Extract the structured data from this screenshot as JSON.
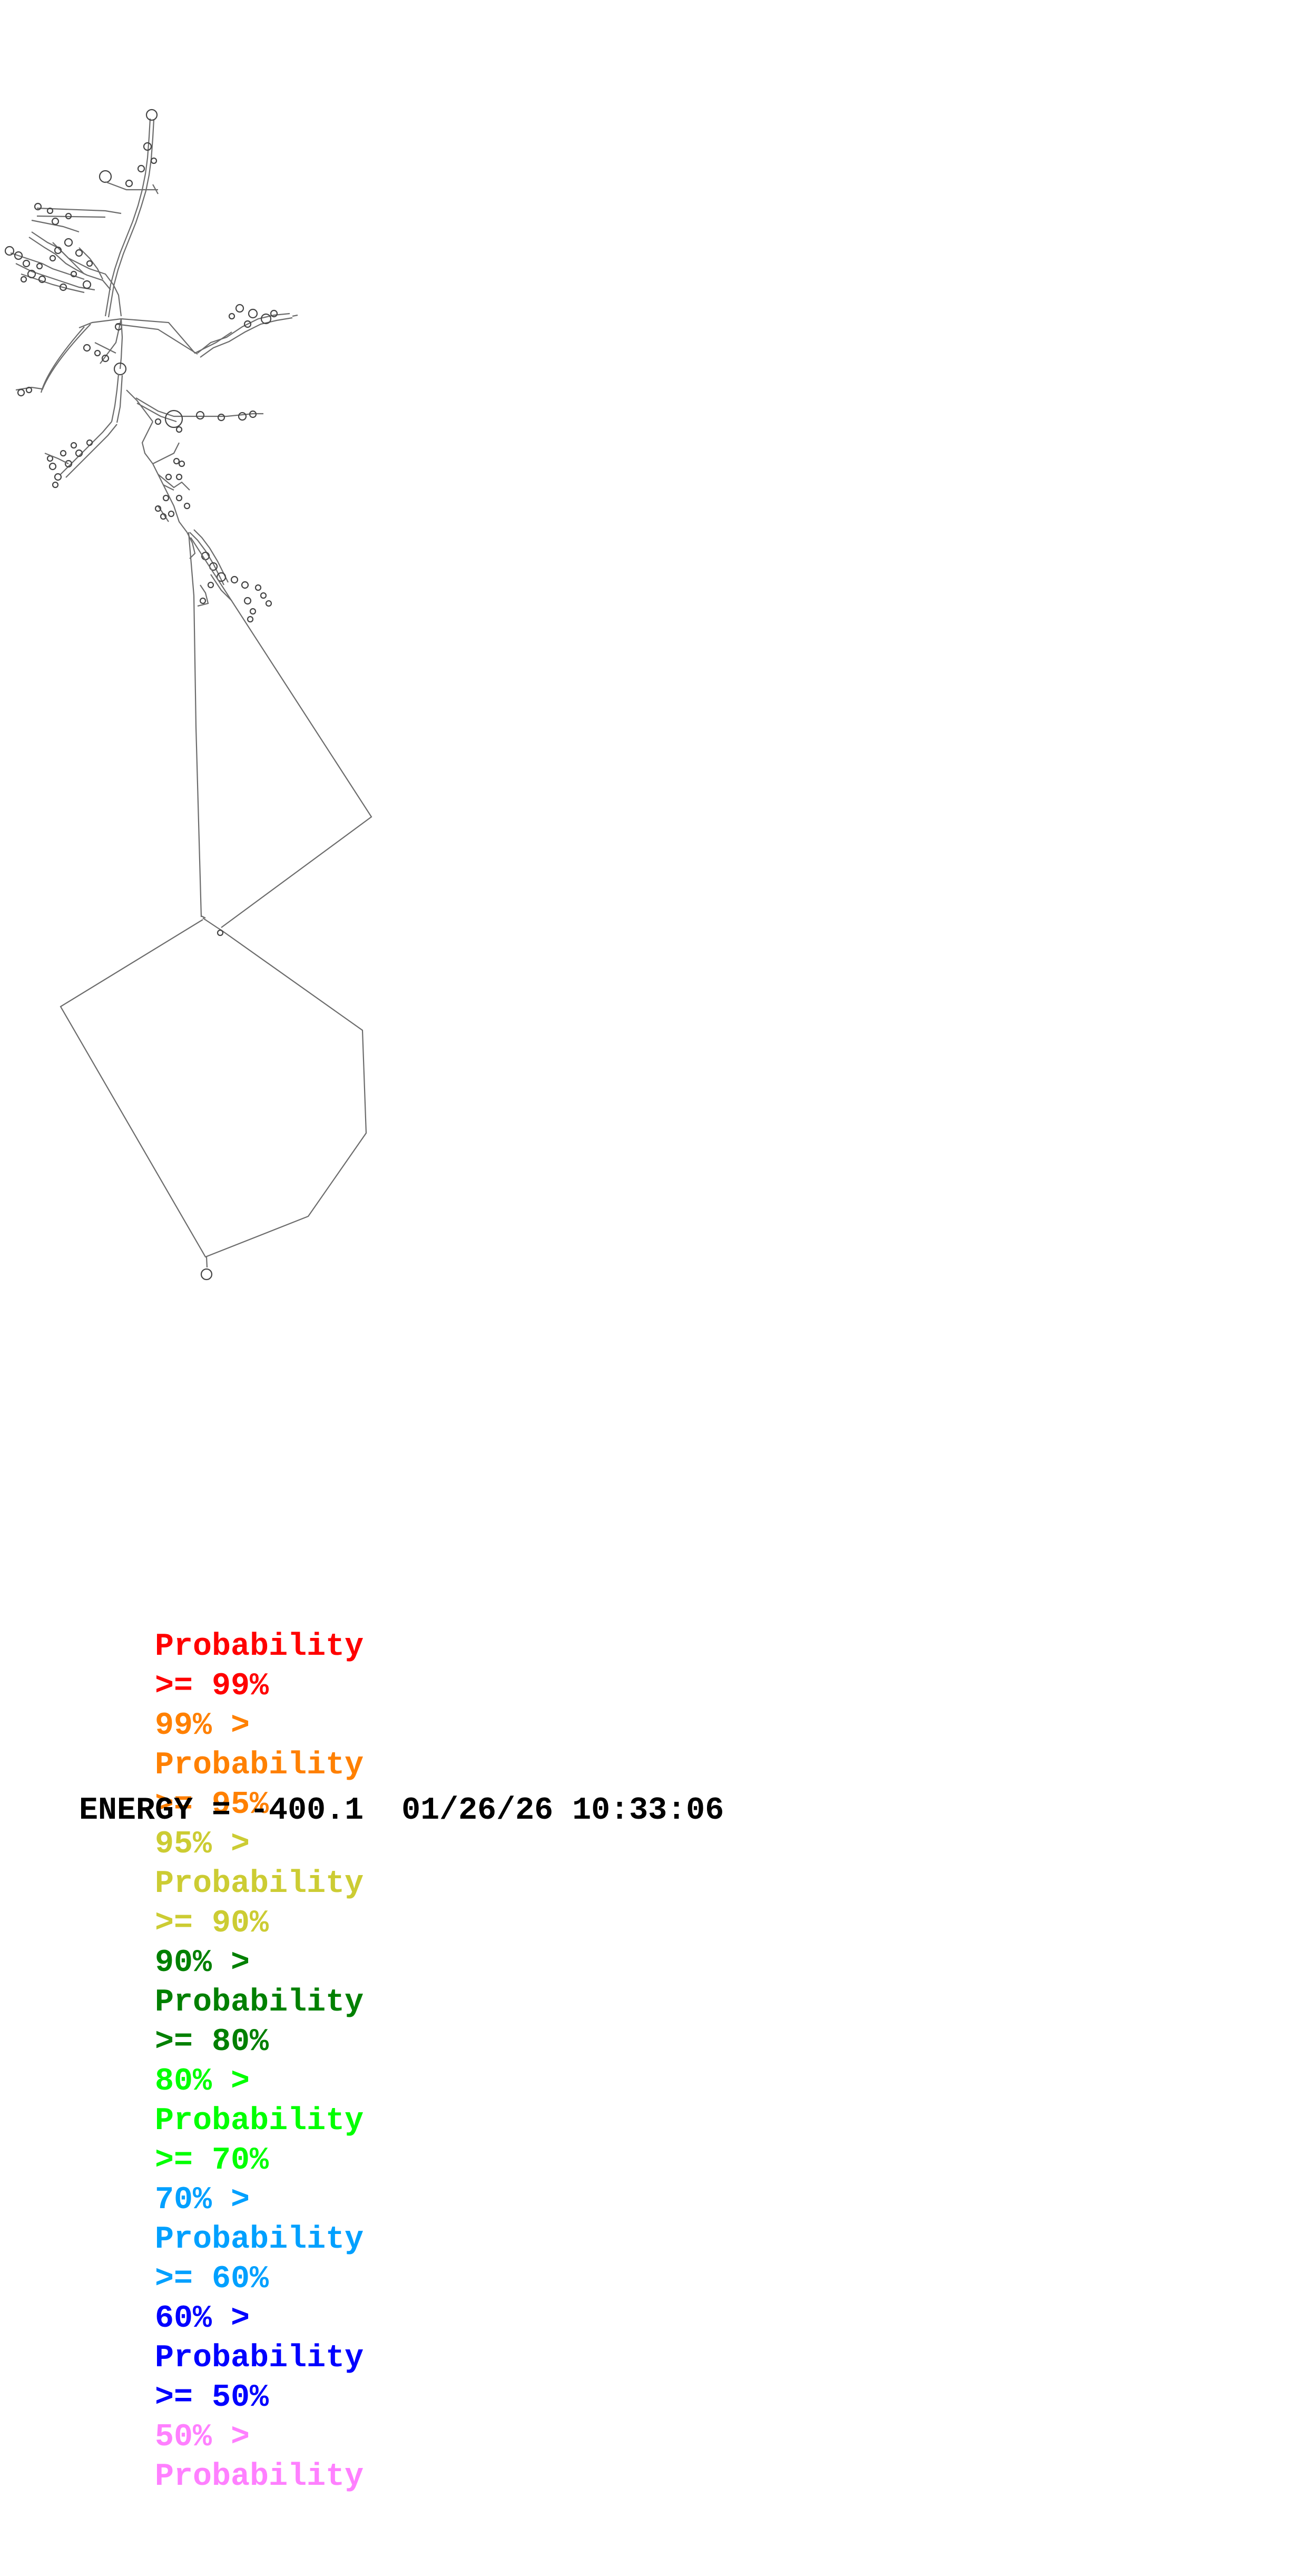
{
  "legend": {
    "rows": [
      {
        "prefix": "",
        "label": "Probability",
        "suffix": ">= 99%",
        "color": "#ff0000"
      },
      {
        "prefix": "99% >",
        "label": "Probability",
        "suffix": ">= 95%",
        "color": "#ff8000"
      },
      {
        "prefix": "95% >",
        "label": "Probability",
        "suffix": ">= 90%",
        "color": "#cccc33"
      },
      {
        "prefix": "90% >",
        "label": "Probability",
        "suffix": ">= 80%",
        "color": "#008000"
      },
      {
        "prefix": "80% >",
        "label": "Probability",
        "suffix": ">= 70%",
        "color": "#00ff00"
      },
      {
        "prefix": "70% >",
        "label": "Probability",
        "suffix": ">= 60%",
        "color": "#00a0ff"
      },
      {
        "prefix": "60% >",
        "label": "Probability",
        "suffix": ">= 50%",
        "color": "#0000ff"
      },
      {
        "prefix": "50% >",
        "label": "Probability",
        "suffix": "",
        "color": "#ff80ff"
      }
    ]
  },
  "footer": {
    "energy": "ENERGY = -400.1",
    "timestamp": "01/26/26 10:33:06"
  },
  "structure": {
    "line_color": "#6b6b6b"
  }
}
